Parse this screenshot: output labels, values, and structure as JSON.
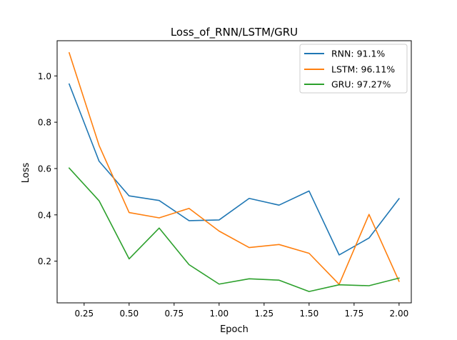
{
  "chart_data": {
    "type": "line",
    "title": "Loss_of_RNN/LSTM/GRU",
    "xlabel": "Epoch",
    "ylabel": "Loss",
    "xlim": [
      0.1,
      2.068
    ],
    "ylim": [
      0.02,
      1.152
    ],
    "xticks": [
      0.25,
      0.5,
      0.75,
      1.0,
      1.25,
      1.5,
      1.75,
      2.0
    ],
    "xtick_labels": [
      "0.25",
      "0.50",
      "0.75",
      "1.00",
      "1.25",
      "1.50",
      "1.75",
      "2.00"
    ],
    "yticks": [
      0.2,
      0.4,
      0.6,
      0.8,
      1.0
    ],
    "ytick_labels": [
      "0.2",
      "0.4",
      "0.6",
      "0.8",
      "1.0"
    ],
    "grid": false,
    "legend_position": "top-right",
    "x": [
      0.167,
      0.333,
      0.5,
      0.667,
      0.833,
      1.0,
      1.167,
      1.333,
      1.5,
      1.667,
      1.833,
      2.0
    ],
    "series": [
      {
        "name": "RNN: 91.1%",
        "color": "#1f77b4",
        "values": [
          0.965,
          0.632,
          0.482,
          0.462,
          0.375,
          0.378,
          0.471,
          0.442,
          0.503,
          0.227,
          0.3,
          0.47
        ]
      },
      {
        "name": "LSTM: 96.11%",
        "color": "#ff7f0e",
        "values": [
          1.1,
          0.7,
          0.41,
          0.387,
          0.428,
          0.33,
          0.259,
          0.272,
          0.234,
          0.1,
          0.402,
          0.113
        ]
      },
      {
        "name": "GRU: 97.27%",
        "color": "#2ca02c",
        "values": [
          0.602,
          0.461,
          0.21,
          0.343,
          0.185,
          0.101,
          0.124,
          0.118,
          0.069,
          0.098,
          0.094,
          0.127
        ]
      }
    ]
  }
}
